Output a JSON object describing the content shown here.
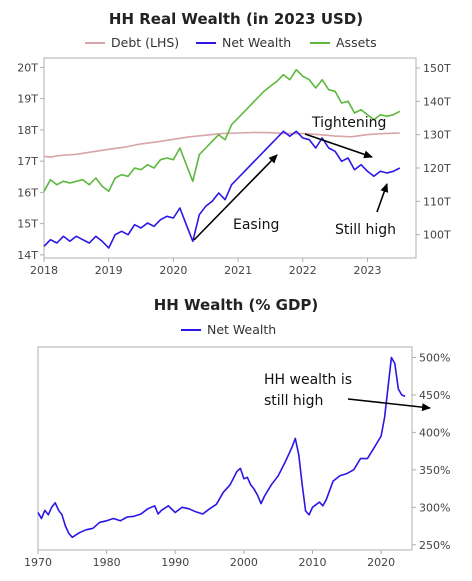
{
  "colors": {
    "debt": "#d8a5a8",
    "net_wealth": "#2b16e6",
    "assets": "#5cb83c",
    "axis": "#b0b0b0",
    "annotation": "#000000"
  },
  "chart_data": [
    {
      "type": "line",
      "title": "HH Real Wealth (in 2023 USD)",
      "legend": {
        "placement": "top",
        "entries": [
          "Debt (LHS)",
          "Net Wealth",
          "Assets"
        ]
      },
      "grid": false,
      "x_ticks": [
        "2018",
        "2019",
        "2020",
        "2021",
        "2022",
        "2023"
      ],
      "xlim": [
        2018.0,
        2023.75
      ],
      "y_left": {
        "ticks": [
          "14T",
          "15T",
          "16T",
          "17T",
          "18T",
          "19T",
          "20T"
        ],
        "ylim": [
          13.9,
          20.3
        ]
      },
      "y_right": {
        "ticks": [
          "100T",
          "110T",
          "120T",
          "130T",
          "140T",
          "150T"
        ],
        "ylim": [
          93,
          153
        ]
      },
      "series": [
        {
          "name": "Debt (LHS)",
          "axis": "left",
          "color_key": "debt",
          "x": [
            2018.0,
            2018.1,
            2018.25,
            2018.5,
            2018.75,
            2019.0,
            2019.25,
            2019.5,
            2019.75,
            2020.0,
            2020.25,
            2020.5,
            2020.75,
            2021.0,
            2021.25,
            2021.5,
            2021.75,
            2022.0,
            2022.25,
            2022.5,
            2022.75,
            2023.0,
            2023.25,
            2023.5
          ],
          "values": [
            17.15,
            17.13,
            17.18,
            17.22,
            17.3,
            17.38,
            17.45,
            17.55,
            17.62,
            17.7,
            17.78,
            17.83,
            17.88,
            17.9,
            17.92,
            17.91,
            17.88,
            17.88,
            17.85,
            17.8,
            17.78,
            17.85,
            17.88,
            17.9
          ]
        },
        {
          "name": "Net Wealth",
          "axis": "right",
          "color_key": "net_wealth",
          "x": [
            2018.0,
            2018.1,
            2018.2,
            2018.3,
            2018.4,
            2018.5,
            2018.6,
            2018.7,
            2018.8,
            2018.9,
            2019.0,
            2019.1,
            2019.2,
            2019.3,
            2019.4,
            2019.5,
            2019.6,
            2019.7,
            2019.8,
            2019.9,
            2020.0,
            2020.1,
            2020.2,
            2020.3,
            2020.4,
            2020.5,
            2020.6,
            2020.7,
            2020.8,
            2020.9,
            2021.0,
            2021.1,
            2021.2,
            2021.3,
            2021.4,
            2021.5,
            2021.6,
            2021.7,
            2021.8,
            2021.9,
            2022.0,
            2022.1,
            2022.2,
            2022.3,
            2022.4,
            2022.5,
            2022.6,
            2022.7,
            2022.8,
            2022.9,
            2023.0,
            2023.1,
            2023.2,
            2023.3,
            2023.4,
            2023.5
          ],
          "values": [
            96.5,
            98.5,
            97.5,
            99.5,
            98.0,
            99.5,
            98.5,
            97.5,
            99.5,
            98.0,
            96.0,
            100.0,
            101.0,
            100.0,
            103.0,
            102.0,
            103.5,
            102.5,
            104.5,
            105.5,
            105.0,
            108.0,
            103.0,
            98.0,
            106.0,
            108.5,
            110.0,
            112.5,
            110.5,
            115.0,
            117.0,
            119.0,
            121.0,
            123.0,
            125.0,
            127.0,
            129.0,
            131.0,
            129.5,
            131.0,
            129.0,
            128.5,
            126.0,
            129.0,
            126.0,
            125.0,
            122.0,
            123.0,
            119.5,
            121.0,
            119.0,
            117.5,
            119.0,
            118.5,
            119.0,
            120.0
          ]
        },
        {
          "name": "Assets",
          "axis": "right",
          "color_key": "assets",
          "x": [
            2018.0,
            2018.1,
            2018.2,
            2018.3,
            2018.4,
            2018.5,
            2018.6,
            2018.7,
            2018.8,
            2018.9,
            2019.0,
            2019.1,
            2019.2,
            2019.3,
            2019.4,
            2019.5,
            2019.6,
            2019.7,
            2019.8,
            2019.9,
            2020.0,
            2020.1,
            2020.2,
            2020.3,
            2020.4,
            2020.5,
            2020.6,
            2020.7,
            2020.8,
            2020.9,
            2021.0,
            2021.1,
            2021.2,
            2021.3,
            2021.4,
            2021.5,
            2021.6,
            2021.7,
            2021.8,
            2021.9,
            2022.0,
            2022.1,
            2022.2,
            2022.3,
            2022.4,
            2022.5,
            2022.6,
            2022.7,
            2022.8,
            2022.9,
            2023.0,
            2023.1,
            2023.2,
            2023.3,
            2023.4,
            2023.5
          ],
          "values": [
            113.0,
            116.5,
            115.0,
            116.0,
            115.5,
            116.0,
            116.5,
            115.0,
            117.0,
            114.5,
            113.0,
            117.0,
            118.0,
            117.5,
            120.0,
            119.5,
            121.0,
            120.0,
            122.5,
            123.0,
            122.5,
            126.0,
            121.0,
            116.0,
            124.0,
            126.0,
            128.0,
            130.0,
            128.5,
            133.0,
            135.0,
            137.0,
            139.0,
            141.0,
            143.0,
            144.5,
            146.0,
            148.0,
            146.5,
            149.5,
            147.5,
            146.5,
            144.0,
            146.5,
            143.5,
            143.0,
            139.5,
            140.0,
            136.5,
            137.5,
            136.0,
            134.5,
            136.0,
            135.5,
            136.0,
            137.0
          ]
        }
      ],
      "annotations": [
        {
          "text": "Tightening"
        },
        {
          "text": "Easing"
        },
        {
          "text": "Still high"
        }
      ]
    },
    {
      "type": "line",
      "title": "HH Wealth (% GDP)",
      "legend": {
        "placement": "top",
        "entries": [
          "Net Wealth"
        ]
      },
      "grid": false,
      "x_ticks": [
        "1970",
        "1980",
        "1990",
        "2000",
        "2010",
        "2020"
      ],
      "xlim": [
        1970,
        2024.5
      ],
      "y_right": {
        "ticks": [
          "250%",
          "300%",
          "350%",
          "400%",
          "450%",
          "500%"
        ],
        "ylim": [
          243,
          514
        ]
      },
      "series": [
        {
          "name": "Net Wealth",
          "axis": "right",
          "color_key": "net_wealth",
          "x": [
            1970.0,
            1970.5,
            1971.0,
            1971.5,
            1972.0,
            1972.5,
            1973.0,
            1973.5,
            1974.0,
            1974.5,
            1975.0,
            1976.0,
            1977.0,
            1978.0,
            1979.0,
            1980.0,
            1981.0,
            1982.0,
            1983.0,
            1984.0,
            1985.0,
            1986.0,
            1987.0,
            1987.5,
            1988.0,
            1989.0,
            1990.0,
            1991.0,
            1992.0,
            1993.0,
            1994.0,
            1995.0,
            1996.0,
            1997.0,
            1998.0,
            1999.0,
            1999.5,
            2000.0,
            2000.5,
            2001.0,
            2001.5,
            2002.0,
            2002.5,
            2003.0,
            2004.0,
            2005.0,
            2006.0,
            2007.0,
            2007.5,
            2008.0,
            2008.5,
            2009.0,
            2009.5,
            2010.0,
            2011.0,
            2011.5,
            2012.0,
            2013.0,
            2014.0,
            2015.0,
            2016.0,
            2017.0,
            2018.0,
            2019.0,
            2020.0,
            2020.5,
            2021.0,
            2021.5,
            2022.0,
            2022.5,
            2023.0,
            2023.5
          ],
          "values": [
            293,
            285,
            296,
            290,
            300,
            306,
            296,
            290,
            275,
            265,
            260,
            266,
            270,
            272,
            280,
            282,
            285,
            282,
            287,
            288,
            291,
            298,
            302,
            291,
            296,
            302,
            293,
            300,
            298,
            294,
            291,
            298,
            304,
            320,
            330,
            348,
            352,
            338,
            340,
            330,
            324,
            316,
            305,
            315,
            330,
            342,
            360,
            380,
            392,
            370,
            330,
            295,
            290,
            300,
            307,
            302,
            310,
            335,
            342,
            345,
            350,
            365,
            365,
            380,
            395,
            420,
            460,
            500,
            492,
            458,
            450,
            448
          ]
        }
      ],
      "annotations": [
        {
          "text": "HH wealth is still high"
        }
      ]
    }
  ],
  "text": {
    "chart1_title": "HH Real Wealth (in 2023 USD)",
    "legend1_debt": "Debt (LHS)",
    "legend1_net": "Net Wealth",
    "legend1_assets": "Assets",
    "anno_tightening": "Tightening",
    "anno_easing": "Easing",
    "anno_still_high": "Still high",
    "chart2_title": "HH Wealth (% GDP)",
    "legend2_net": "Net Wealth",
    "anno2_line1": "HH wealth is",
    "anno2_line2": "still high"
  }
}
